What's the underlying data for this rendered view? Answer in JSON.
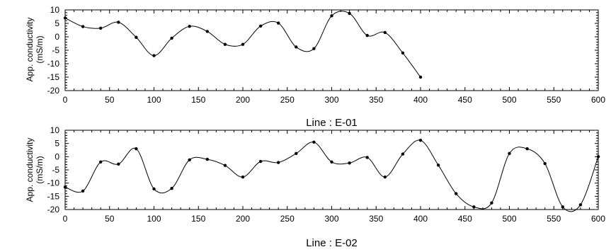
{
  "chart_data": [
    {
      "type": "line",
      "xlabel": "Line : E-01",
      "ylabel": [
        "App. conductivity",
        "(mS/m)"
      ],
      "xlim": [
        0,
        600
      ],
      "ylim": [
        -20,
        10
      ],
      "xticks": [
        0,
        50,
        100,
        150,
        200,
        250,
        300,
        350,
        400,
        450,
        500,
        550,
        600
      ],
      "yticks": [
        -20,
        -15,
        -10,
        -5,
        0,
        5,
        10
      ],
      "grid": false,
      "series": [
        {
          "x": [
            0,
            20,
            40,
            60,
            80,
            100,
            120,
            140,
            160,
            180,
            200,
            220,
            240,
            260,
            280,
            300,
            320,
            340,
            360,
            380,
            400
          ],
          "y": [
            7,
            3.8,
            3.2,
            5.4,
            -0.2,
            -7,
            -0.5,
            3.9,
            2,
            -2.8,
            -2.8,
            4,
            5.1,
            -3.8,
            -4.4,
            7.8,
            8.7,
            0.5,
            1.6,
            -6,
            -15
          ]
        }
      ]
    },
    {
      "type": "line",
      "xlabel": "Line : E-02",
      "ylabel": [
        "App. conductivity",
        "(mS/m)"
      ],
      "xlim": [
        0,
        600
      ],
      "ylim": [
        -20,
        10
      ],
      "xticks": [
        0,
        50,
        100,
        150,
        200,
        250,
        300,
        350,
        400,
        450,
        500,
        550,
        600
      ],
      "yticks": [
        -20,
        -15,
        -10,
        -5,
        0,
        5,
        10
      ],
      "grid": false,
      "series": [
        {
          "x": [
            0,
            20,
            40,
            60,
            80,
            100,
            120,
            140,
            160,
            180,
            200,
            220,
            240,
            260,
            280,
            300,
            320,
            340,
            360,
            380,
            400,
            420,
            440,
            460,
            480,
            500,
            520,
            540,
            560,
            580,
            600
          ],
          "y": [
            -11.5,
            -13,
            -2,
            -2.8,
            3,
            -12.2,
            -12,
            -1.2,
            -1,
            -3.3,
            -7.7,
            -1.8,
            -2.2,
            1.2,
            5.5,
            -2,
            -2.4,
            -0.3,
            -7.7,
            1,
            6.2,
            -3.2,
            -14,
            -19,
            -17.5,
            1.2,
            3,
            -2.6,
            -19,
            -18.2,
            0
          ]
        }
      ]
    }
  ]
}
